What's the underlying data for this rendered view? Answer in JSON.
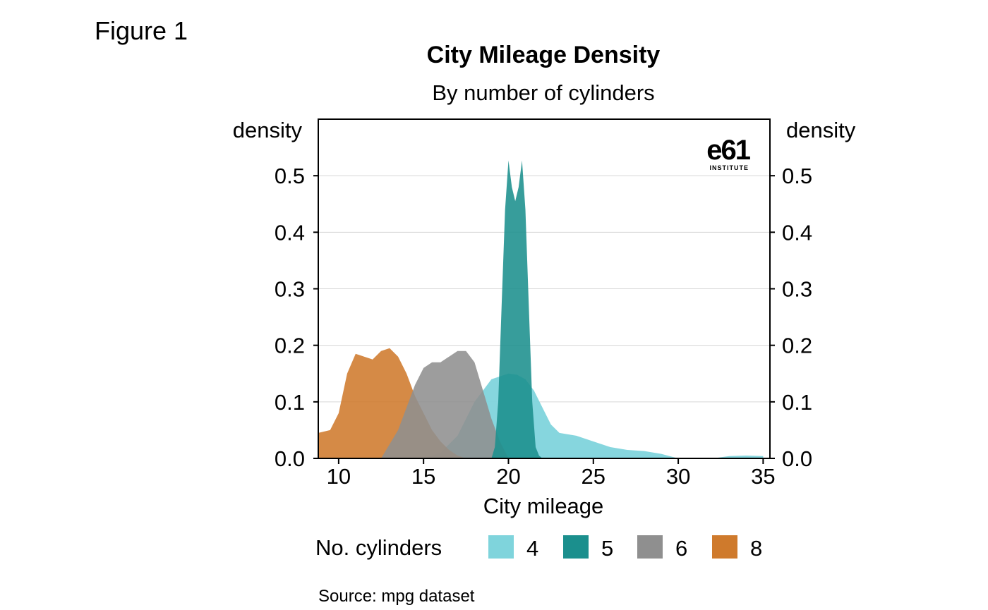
{
  "figure_label": "Figure 1",
  "logo": {
    "mark": "e61",
    "sub": "INSTITUTE"
  },
  "legend": {
    "title": "No. cylinders"
  },
  "source": "Source: mpg dataset",
  "colors": {
    "4": "#7fd4dc",
    "5": "#1b8f8d",
    "6": "#8f8f8f",
    "8": "#cf7a2c",
    "grid": "#d6d6d6"
  },
  "chart_data": {
    "type": "area",
    "title": "City Mileage Density",
    "subtitle": "By number of cylinders",
    "xlabel": "City mileage",
    "ylabel_left": "density",
    "ylabel_right": "density",
    "xlim": [
      8.8,
      35.4
    ],
    "ylim": [
      0,
      0.6
    ],
    "xticks": [
      10,
      15,
      20,
      25,
      30,
      35
    ],
    "yticks": [
      0.0,
      0.1,
      0.2,
      0.3,
      0.4,
      0.5
    ],
    "ytick_labels": [
      "0.0",
      "0.1",
      "0.2",
      "0.3",
      "0.4",
      "0.5"
    ],
    "grid": true,
    "legend_position": "bottom",
    "series": [
      {
        "name": "4",
        "x": [
          15.0,
          16.0,
          17.0,
          18.0,
          19.0,
          20.0,
          20.5,
          21.0,
          21.5,
          22.0,
          22.5,
          23.0,
          24.0,
          25.0,
          26.0,
          27.0,
          28.0,
          29.0,
          30.0,
          31.0,
          32.0,
          33.0,
          34.0,
          35.0
        ],
        "y": [
          0.0,
          0.01,
          0.04,
          0.1,
          0.14,
          0.15,
          0.148,
          0.14,
          0.12,
          0.09,
          0.06,
          0.045,
          0.04,
          0.03,
          0.02,
          0.015,
          0.013,
          0.008,
          0.0,
          0.0,
          0.0,
          0.004,
          0.005,
          0.004
        ]
      },
      {
        "name": "5",
        "x": [
          19.0,
          19.2,
          19.4,
          19.6,
          19.8,
          20.0,
          20.2,
          20.4,
          20.6,
          20.8,
          21.0,
          21.2,
          21.4,
          21.6,
          21.8,
          22.0
        ],
        "y": [
          0.0,
          0.02,
          0.1,
          0.27,
          0.44,
          0.527,
          0.48,
          0.455,
          0.48,
          0.527,
          0.44,
          0.27,
          0.1,
          0.02,
          0.005,
          0.0
        ]
      },
      {
        "name": "6",
        "x": [
          12.5,
          13.5,
          14.0,
          14.5,
          15.0,
          15.5,
          16.0,
          16.5,
          17.0,
          17.5,
          18.0,
          18.5,
          19.0,
          19.5,
          20.0
        ],
        "y": [
          0.0,
          0.05,
          0.09,
          0.13,
          0.16,
          0.17,
          0.17,
          0.18,
          0.19,
          0.19,
          0.17,
          0.12,
          0.07,
          0.03,
          0.0
        ]
      },
      {
        "name": "8",
        "x": [
          8.8,
          9.5,
          10.0,
          10.5,
          11.0,
          11.5,
          12.0,
          12.5,
          13.0,
          13.5,
          14.0,
          14.5,
          15.0,
          15.5,
          16.0,
          16.5,
          17.0,
          17.5
        ],
        "y": [
          0.045,
          0.05,
          0.08,
          0.15,
          0.185,
          0.18,
          0.175,
          0.19,
          0.195,
          0.18,
          0.15,
          0.11,
          0.08,
          0.05,
          0.03,
          0.015,
          0.005,
          0.0
        ]
      }
    ]
  }
}
